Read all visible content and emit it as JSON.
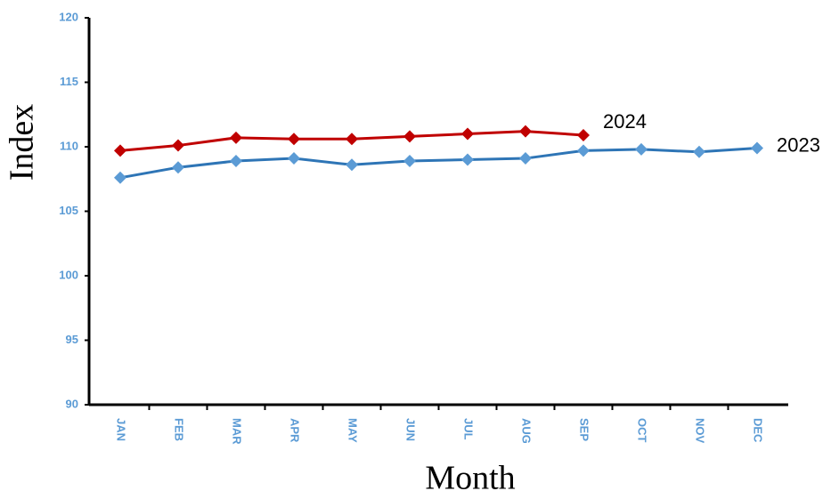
{
  "chart_data": {
    "type": "line",
    "x_label": "Month",
    "y_label": "Index",
    "categories": [
      "JAN",
      "FEB",
      "MAR",
      "APR",
      "MAY",
      "JUN",
      "JUL",
      "AUG",
      "SEP",
      "OCT",
      "NOV",
      "DEC"
    ],
    "series": [
      {
        "name": "2024",
        "color": "#c00000",
        "marker_color": "#c00000",
        "values": [
          109.7,
          110.1,
          110.7,
          110.6,
          110.6,
          110.8,
          111.0,
          111.2,
          110.9,
          null,
          null,
          null
        ]
      },
      {
        "name": "2023",
        "color": "#2e75b6",
        "marker_color": "#5b9bd5",
        "values": [
          107.6,
          108.4,
          108.9,
          109.1,
          108.6,
          108.9,
          109.0,
          109.1,
          109.7,
          109.8,
          109.6,
          109.9
        ]
      }
    ],
    "ylim": [
      90,
      120
    ],
    "yticks": [
      90,
      95,
      100,
      105,
      110,
      115,
      120
    ],
    "grid": false
  }
}
